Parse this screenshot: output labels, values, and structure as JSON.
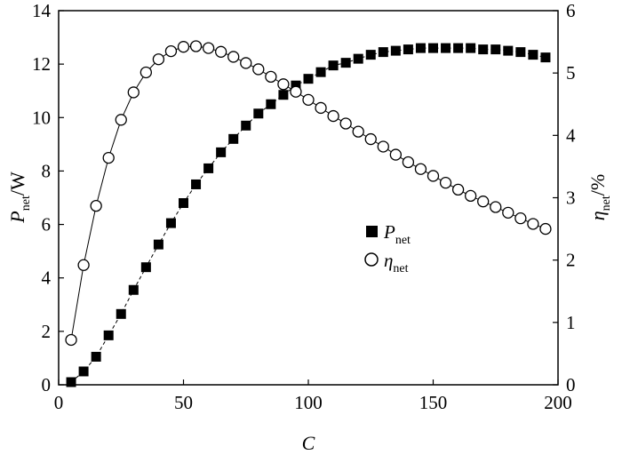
{
  "chart_data": {
    "type": "scatter",
    "xlabel": "C",
    "ylabel_left": {
      "symbol": "P",
      "sub": "net",
      "unit": "/W"
    },
    "ylabel_right": {
      "symbol": "η",
      "sub": "net",
      "unit": "/%"
    },
    "xlim": [
      0,
      200
    ],
    "ylim_left": [
      0,
      14
    ],
    "ylim_right": [
      0,
      6
    ],
    "x_ticks": [
      "0",
      "50",
      "100",
      "150",
      "200"
    ],
    "y_left_ticks": [
      "0",
      "2",
      "4",
      "6",
      "8",
      "10",
      "12",
      "14"
    ],
    "y_right_ticks": [
      "0",
      "1",
      "2",
      "3",
      "4",
      "5",
      "6"
    ],
    "grid": false,
    "legend": {
      "position": "center-right"
    },
    "series": [
      {
        "name": "P",
        "name_sub": "net",
        "axis": "left",
        "marker": "filled-square",
        "line": "dashed",
        "x": [
          5,
          10,
          15,
          20,
          25,
          30,
          35,
          40,
          45,
          50,
          55,
          60,
          65,
          70,
          75,
          80,
          85,
          90,
          95,
          100,
          105,
          110,
          115,
          120,
          125,
          130,
          135,
          140,
          145,
          150,
          155,
          160,
          165,
          170,
          175,
          180,
          185,
          190,
          195
        ],
        "y": [
          0.1,
          0.5,
          1.05,
          1.85,
          2.65,
          3.55,
          4.4,
          5.25,
          6.05,
          6.8,
          7.5,
          8.1,
          8.7,
          9.2,
          9.7,
          10.15,
          10.5,
          10.85,
          11.2,
          11.45,
          11.7,
          11.95,
          12.05,
          12.2,
          12.35,
          12.45,
          12.5,
          12.55,
          12.6,
          12.6,
          12.6,
          12.6,
          12.6,
          12.55,
          12.55,
          12.5,
          12.45,
          12.35,
          12.25
        ]
      },
      {
        "name": "η",
        "name_sub": "net",
        "axis": "right",
        "marker": "open-circle",
        "line": "solid",
        "x": [
          5,
          10,
          15,
          20,
          25,
          30,
          35,
          40,
          45,
          50,
          55,
          60,
          65,
          70,
          75,
          80,
          85,
          90,
          95,
          100,
          105,
          110,
          115,
          120,
          125,
          130,
          135,
          140,
          145,
          150,
          155,
          160,
          165,
          170,
          175,
          180,
          185,
          190,
          195
        ],
        "y": [
          0.72,
          1.92,
          2.87,
          3.64,
          4.25,
          4.69,
          5.01,
          5.22,
          5.35,
          5.42,
          5.43,
          5.4,
          5.34,
          5.26,
          5.16,
          5.06,
          4.94,
          4.82,
          4.7,
          4.57,
          4.44,
          4.31,
          4.19,
          4.06,
          3.94,
          3.82,
          3.69,
          3.57,
          3.46,
          3.35,
          3.24,
          3.13,
          3.03,
          2.94,
          2.85,
          2.76,
          2.67,
          2.58,
          2.5
        ]
      }
    ]
  }
}
